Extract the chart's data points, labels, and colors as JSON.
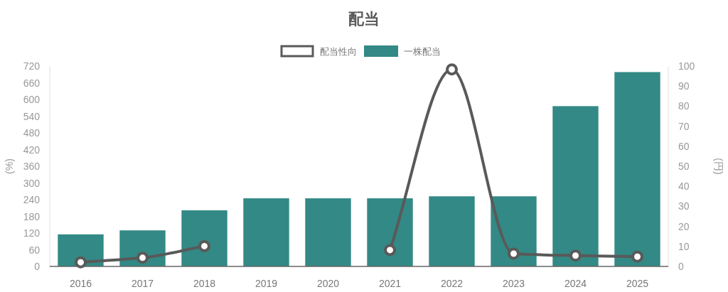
{
  "chart_data": {
    "type": "bar",
    "title": "配当",
    "ylabel": "(%)",
    "y2label": "(円)",
    "categories": [
      "2016",
      "2017",
      "2018",
      "2019",
      "2020",
      "2021",
      "2022",
      "2023",
      "2024",
      "2025"
    ],
    "series": [
      {
        "name": "配当性向",
        "type": "line",
        "color": "#595959",
        "values": [
          15,
          31,
          73,
          null,
          null,
          59,
          708,
          46,
          39,
          35
        ]
      },
      {
        "name": "一株配当",
        "axis": "y2",
        "color": "#338985",
        "values": [
          16,
          18,
          28,
          34,
          34,
          34,
          35,
          35,
          80,
          97
        ]
      }
    ],
    "ylim": [
      0,
      720
    ],
    "yticks": [
      0,
      60,
      120,
      180,
      240,
      300,
      360,
      420,
      480,
      540,
      600,
      660,
      720
    ],
    "y2lim": [
      0,
      100
    ],
    "y2ticks": [
      0,
      10,
      20,
      30,
      40,
      50,
      60,
      70,
      80,
      90,
      100
    ],
    "legend": "top",
    "marker": "circle",
    "line_style": "solid"
  }
}
